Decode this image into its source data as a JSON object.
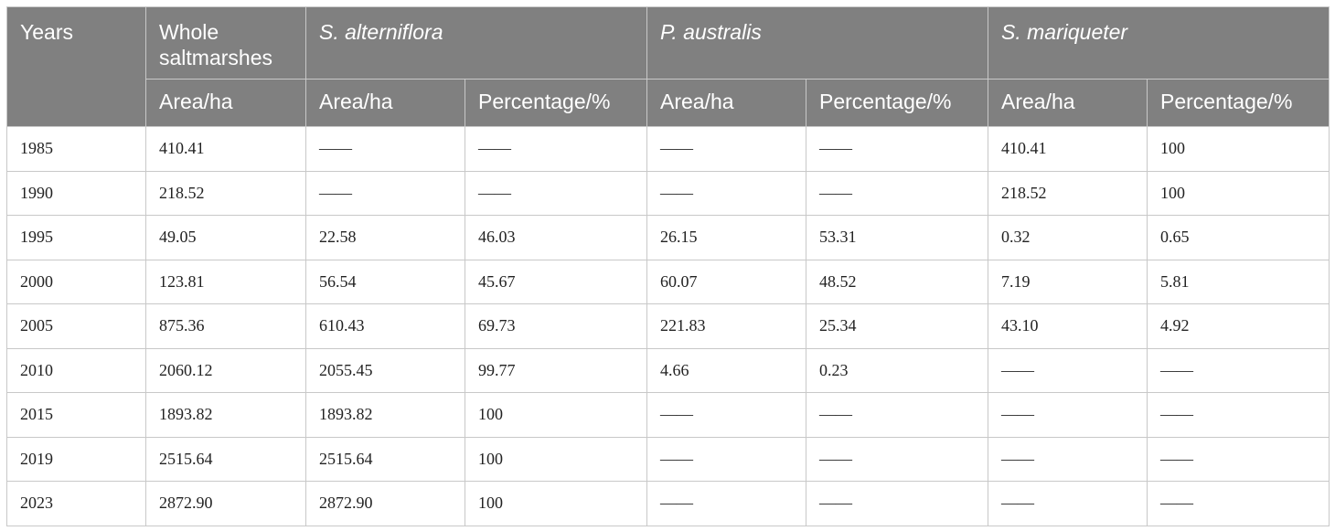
{
  "table": {
    "header_row1": {
      "years": "Years",
      "whole": "Whole saltmarshes",
      "species1": "S. alterniflora",
      "species2": "P. australis",
      "species3": "S. mariqueter"
    },
    "header_row2": {
      "whole_area": "Area/ha",
      "s1_area": "Area/ha",
      "s1_pct": "Percentage/%",
      "s2_area": "Area/ha",
      "s2_pct": "Percentage/%",
      "s3_area": "Area/ha",
      "s3_pct": "Percentage/%"
    },
    "rows": [
      [
        "1985",
        "410.41",
        "——",
        "——",
        "——",
        "——",
        "410.41",
        "100"
      ],
      [
        "1990",
        "218.52",
        "——",
        "——",
        "——",
        "——",
        "218.52",
        "100"
      ],
      [
        "1995",
        "49.05",
        "22.58",
        "46.03",
        "26.15",
        "53.31",
        "0.32",
        "0.65"
      ],
      [
        "2000",
        "123.81",
        "56.54",
        "45.67",
        "60.07",
        "48.52",
        "7.19",
        "5.81"
      ],
      [
        "2005",
        "875.36",
        "610.43",
        "69.73",
        "221.83",
        "25.34",
        "43.10",
        "4.92"
      ],
      [
        "2010",
        "2060.12",
        "2055.45",
        "99.77",
        "4.66",
        "0.23",
        "——",
        "——"
      ],
      [
        "2015",
        "1893.82",
        "1893.82",
        "100",
        "——",
        "——",
        "——",
        "——"
      ],
      [
        "2019",
        "2515.64",
        "2515.64",
        "100",
        "——",
        "——",
        "——",
        "——"
      ],
      [
        "2023",
        "2872.90",
        "2872.90",
        "100",
        "——",
        "——",
        "——",
        "——"
      ]
    ]
  }
}
